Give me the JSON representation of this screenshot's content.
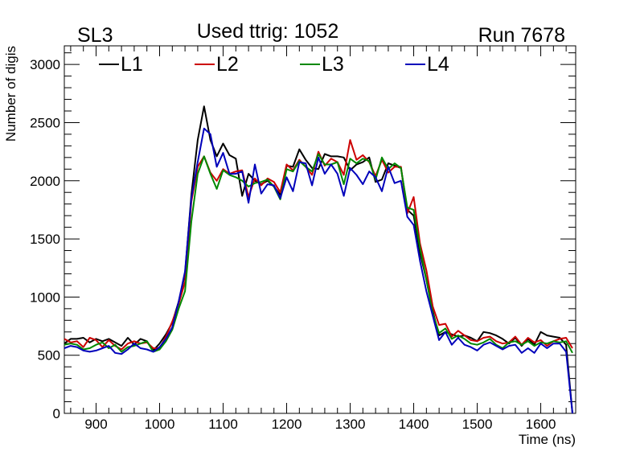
{
  "chart_data": {
    "type": "line",
    "title": "Used ttrig: 1052",
    "top_left_label": "SL3",
    "top_right_label": "Run 7678",
    "xlabel": "Time (ns)",
    "ylabel": "Number of digis",
    "xlim": [
      850,
      1655
    ],
    "ylim": [
      0,
      3160
    ],
    "x_ticks": [
      900,
      1000,
      1100,
      1200,
      1300,
      1400,
      1500,
      1600
    ],
    "x_tick_labels": [
      "900",
      "1000",
      "1100",
      "1200",
      "1300",
      "1400",
      "1500",
      "1600"
    ],
    "y_ticks": [
      0,
      500,
      1000,
      1500,
      2000,
      2500,
      3000
    ],
    "y_tick_labels": [
      "0",
      "500",
      "1000",
      "1500",
      "2000",
      "2500",
      "3000"
    ],
    "legend_position": "top",
    "x": [
      850,
      860,
      870,
      880,
      890,
      900,
      910,
      920,
      930,
      940,
      950,
      960,
      970,
      980,
      990,
      1000,
      1010,
      1020,
      1030,
      1040,
      1050,
      1060,
      1070,
      1080,
      1090,
      1100,
      1110,
      1120,
      1130,
      1140,
      1150,
      1160,
      1170,
      1180,
      1190,
      1200,
      1210,
      1220,
      1230,
      1240,
      1250,
      1260,
      1270,
      1280,
      1290,
      1300,
      1310,
      1320,
      1330,
      1340,
      1350,
      1360,
      1370,
      1380,
      1390,
      1400,
      1410,
      1420,
      1430,
      1440,
      1450,
      1460,
      1470,
      1480,
      1490,
      1500,
      1510,
      1520,
      1530,
      1540,
      1550,
      1560,
      1570,
      1580,
      1590,
      1600,
      1610,
      1620,
      1630,
      1640,
      1650
    ],
    "series": [
      {
        "name": "L1",
        "color": "#000000",
        "values": [
          600,
          640,
          640,
          650,
          610,
          640,
          620,
          640,
          610,
          580,
          650,
          590,
          640,
          620,
          540,
          600,
          680,
          780,
          960,
          1200,
          1880,
          2350,
          2640,
          2350,
          2210,
          2320,
          2220,
          2190,
          1870,
          2060,
          2000,
          1970,
          2000,
          1950,
          1880,
          2130,
          2120,
          2270,
          2180,
          2110,
          2100,
          2230,
          2210,
          2210,
          2200,
          2090,
          2140,
          2160,
          2200,
          1990,
          2010,
          2150,
          2130,
          2110,
          1750,
          1700,
          1380,
          1150,
          880,
          670,
          700,
          680,
          660,
          670,
          650,
          620,
          700,
          690,
          670,
          640,
          600,
          650,
          580,
          640,
          590,
          700,
          670,
          660,
          650,
          590,
          0
        ]
      },
      {
        "name": "L2",
        "color": "#cc0000",
        "values": [
          640,
          610,
          620,
          570,
          650,
          630,
          570,
          630,
          580,
          550,
          600,
          620,
          600,
          610,
          560,
          560,
          660,
          790,
          940,
          1130,
          1820,
          2120,
          2210,
          2070,
          2000,
          2100,
          2060,
          2080,
          2090,
          1860,
          2020,
          1960,
          2020,
          1990,
          1900,
          2140,
          2090,
          2180,
          2120,
          2050,
          2250,
          2130,
          2190,
          2160,
          2050,
          2350,
          2180,
          2220,
          2160,
          2040,
          2180,
          2070,
          2120,
          2120,
          1720,
          1860,
          1460,
          1230,
          920,
          760,
          770,
          660,
          710,
          670,
          630,
          620,
          650,
          660,
          620,
          600,
          610,
          660,
          590,
          650,
          610,
          630,
          580,
          620,
          640,
          650,
          560
        ]
      },
      {
        "name": "L3",
        "color": "#008800",
        "values": [
          590,
          600,
          590,
          550,
          560,
          590,
          610,
          560,
          590,
          530,
          570,
          580,
          600,
          620,
          530,
          550,
          620,
          720,
          900,
          1050,
          1650,
          2060,
          2210,
          2060,
          1930,
          2090,
          2050,
          2030,
          2000,
          1950,
          1980,
          1990,
          2010,
          1950,
          1840,
          2100,
          2080,
          2170,
          2120,
          2080,
          2230,
          2140,
          2140,
          2160,
          1970,
          2190,
          2150,
          2190,
          2170,
          2010,
          2200,
          2100,
          2150,
          2110,
          1770,
          1750,
          1420,
          1150,
          860,
          690,
          730,
          640,
          670,
          640,
          600,
          590,
          610,
          640,
          590,
          560,
          610,
          620,
          590,
          620,
          580,
          610,
          600,
          620,
          610,
          620,
          520
        ]
      },
      {
        "name": "L4",
        "color": "#0000bb",
        "values": [
          560,
          580,
          570,
          540,
          530,
          540,
          560,
          580,
          520,
          510,
          550,
          600,
          560,
          550,
          530,
          570,
          640,
          740,
          960,
          1220,
          1850,
          2160,
          2450,
          2400,
          2120,
          2240,
          2060,
          2060,
          2080,
          1810,
          2140,
          1890,
          1970,
          1960,
          1850,
          2030,
          1910,
          2160,
          2150,
          1960,
          2200,
          2060,
          2140,
          2060,
          1870,
          2110,
          2050,
          1970,
          2080,
          2030,
          1910,
          2120,
          1980,
          2000,
          1690,
          1620,
          1310,
          1050,
          840,
          630,
          700,
          590,
          650,
          590,
          570,
          540,
          590,
          610,
          580,
          550,
          580,
          590,
          520,
          560,
          520,
          600,
          560,
          600,
          600,
          530,
          0
        ]
      }
    ]
  }
}
